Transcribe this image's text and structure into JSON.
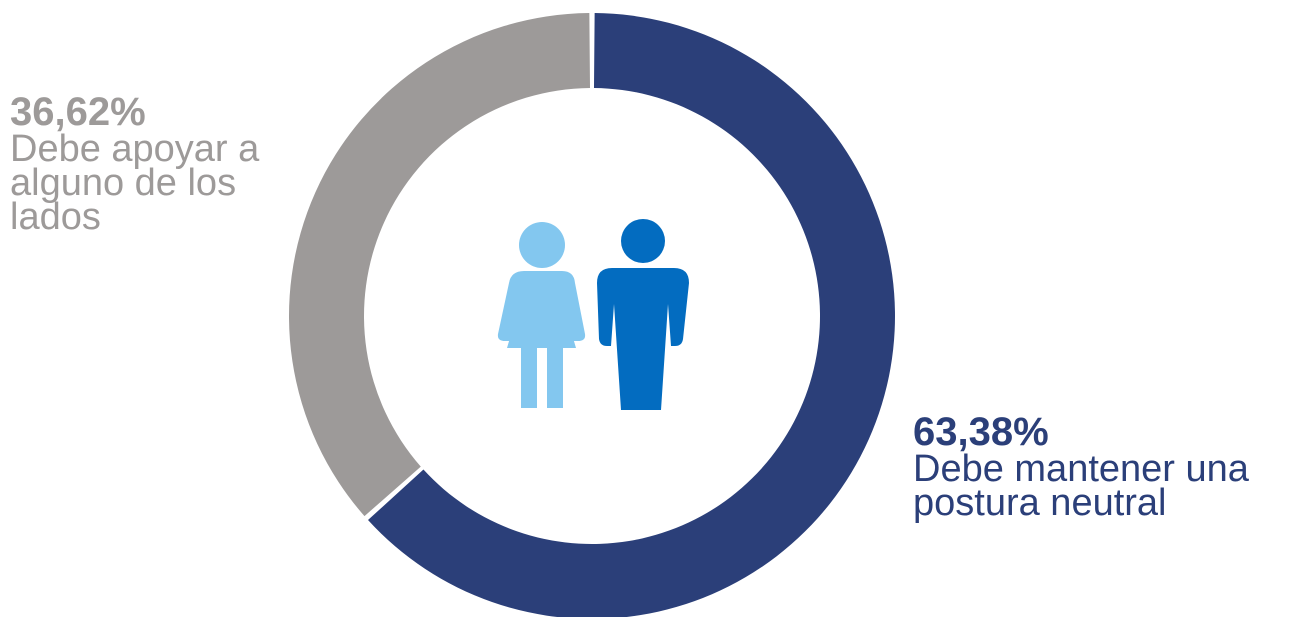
{
  "chart_data": {
    "type": "pie",
    "style": "donut",
    "slices": [
      {
        "label": "Debe mantener una postura neutral",
        "value": 63.38,
        "display_value": "63,38%",
        "color": "#2b3f79"
      },
      {
        "label": "Debe apoyar a alguno de los lados",
        "value": 36.62,
        "display_value": "36,62%",
        "color": "#9d9a99"
      }
    ],
    "center_icons": [
      {
        "name": "woman-icon",
        "color": "#83c7ef"
      },
      {
        "name": "man-icon",
        "color": "#036cc0"
      }
    ]
  },
  "labels": {
    "gray_pct": "36,62%",
    "gray_text": "Debe apoyar a alguno de los lados",
    "blue_pct": "63,38%",
    "blue_text": "Debe mantener una postura neutral"
  }
}
